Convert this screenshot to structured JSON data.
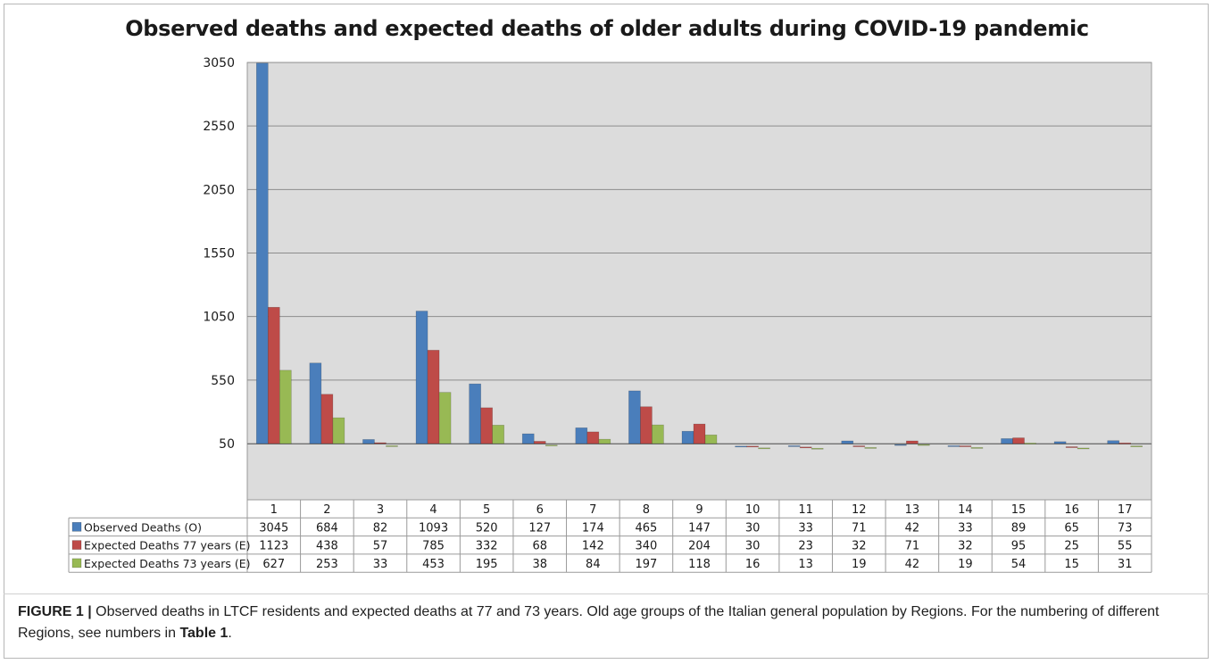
{
  "title": "Observed deaths and expected deaths of older adults during COVID-19 pandemic",
  "caption": {
    "label": "FIGURE 1 |",
    "text_before": " Observed deaths in LTCF residents and expected deaths at 77 and 73 years. Old age groups of the Italian general population by Regions. For the numbering of different Regions, see numbers in ",
    "table_ref": "Table 1",
    "text_after": "."
  },
  "colors": {
    "plot_bg": "#dcdcdc",
    "grid": "#8c8c8c",
    "observed": "#4a7ebb",
    "expected77": "#be4b48",
    "expected73": "#98b954"
  },
  "chart_data": {
    "type": "bar",
    "title": "Observed deaths and expected deaths of older adults during COVID-19 pandemic",
    "categories": [
      "1",
      "2",
      "3",
      "4",
      "5",
      "6",
      "7",
      "8",
      "9",
      "10",
      "11",
      "12",
      "13",
      "14",
      "15",
      "16",
      "17"
    ],
    "series": [
      {
        "name": "Observed Deaths (O)",
        "values": [
          3045,
          684,
          82,
          1093,
          520,
          127,
          174,
          465,
          147,
          30,
          33,
          71,
          42,
          33,
          89,
          65,
          73
        ]
      },
      {
        "name": "Expected Deaths 77 years (E)",
        "values": [
          1123,
          438,
          57,
          785,
          332,
          68,
          142,
          340,
          204,
          30,
          23,
          32,
          71,
          32,
          95,
          25,
          55
        ]
      },
      {
        "name": "Expected Deaths 73 years (E)",
        "values": [
          627,
          253,
          33,
          453,
          195,
          38,
          84,
          197,
          118,
          16,
          13,
          19,
          42,
          19,
          54,
          15,
          31
        ]
      }
    ],
    "y_ticks": [
      50,
      550,
      1050,
      1550,
      2050,
      2550,
      3050
    ],
    "ylim": [
      50,
      3050
    ],
    "xlabel": "",
    "ylabel": "",
    "grid": true,
    "legend": "data-table-below"
  }
}
